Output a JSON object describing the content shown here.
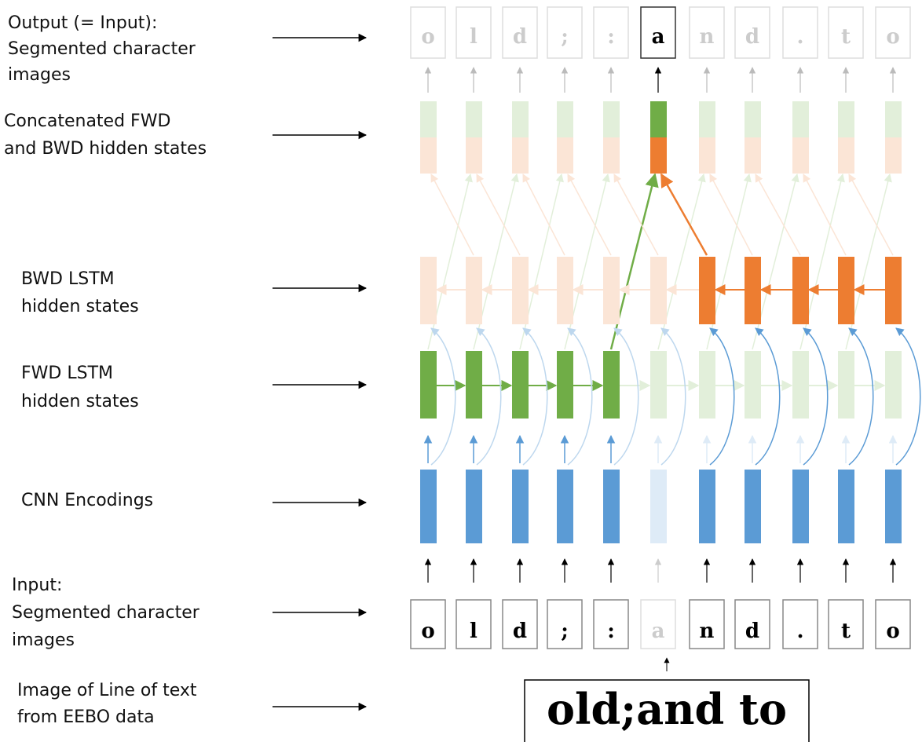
{
  "labels": [
    {
      "lines": [
        "Output (= Input):",
        "Segmented character",
        "images"
      ]
    },
    {
      "lines": [
        "Concatenated FWD",
        "and BWD hidden states"
      ]
    },
    {
      "lines": [
        "BWD LSTM",
        "hidden states"
      ]
    },
    {
      "lines": [
        "FWD LSTM",
        "hidden states"
      ]
    },
    {
      "lines": [
        "CNN Encodings"
      ]
    },
    {
      "lines": [
        "Input:",
        "Segmented character",
        "images"
      ]
    },
    {
      "lines": [
        "Image of Line of text",
        "from EEBO data"
      ]
    }
  ],
  "output_chars": [
    "o",
    "l",
    "d",
    ";",
    ":",
    "a",
    "n",
    "d",
    ".",
    "t",
    "o"
  ],
  "input_chars": [
    "o",
    "l",
    "d",
    ";",
    ":",
    "a",
    "n",
    "d",
    ".",
    "t",
    "o"
  ],
  "line_image_text": "old;and to"
}
